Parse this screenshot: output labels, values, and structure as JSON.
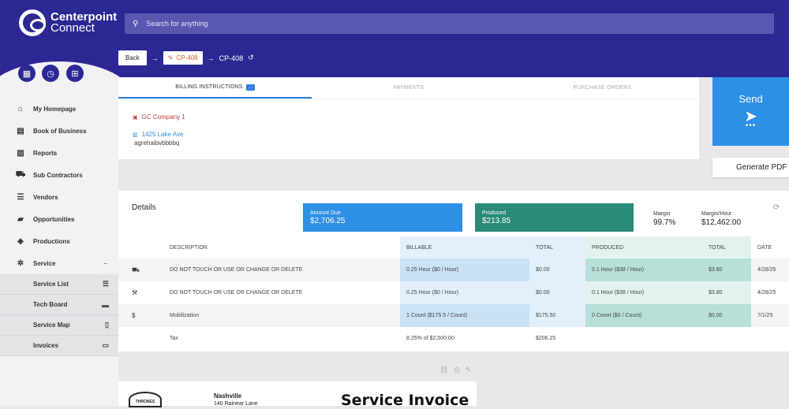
{
  "app": {
    "logo_line1": "Centerpoint",
    "logo_line2": "Connect",
    "brand_color": "#2b2894"
  },
  "search": {
    "placeholder": "Search for anything"
  },
  "breadcrumb": {
    "back_label": "Back",
    "chip_label": "CP-408",
    "current_label": "CP-408"
  },
  "sidebar": {
    "items": [
      {
        "label": "My Homepage",
        "icon": "home-icon"
      },
      {
        "label": "Book of Business",
        "icon": "contacts-book-icon"
      },
      {
        "label": "Reports",
        "icon": "bar-chart-icon"
      },
      {
        "label": "Sub Contractors",
        "icon": "truck-icon"
      },
      {
        "label": "Vendors",
        "icon": "list-box-icon"
      },
      {
        "label": "Opportunities",
        "icon": "folder-icon"
      },
      {
        "label": "Productions",
        "icon": "layers-icon"
      },
      {
        "label": "Service",
        "icon": "wrench-icon"
      }
    ],
    "subitems": [
      {
        "label": "Service List",
        "icon": "list-icon"
      },
      {
        "label": "Tech Board",
        "icon": "board-icon"
      },
      {
        "label": "Service Map",
        "icon": "map-icon"
      },
      {
        "label": "Invoices",
        "icon": "credit-card-icon"
      }
    ]
  },
  "billing": {
    "tabs": [
      "BILLING INSTRUCTIONS",
      "PAYMENTS",
      "PURCHASE ORDERS"
    ],
    "badge": "...",
    "company": "GC Company 1",
    "address": "1425 Lake Ave",
    "note": "agrehaibvbbbbq"
  },
  "actions": {
    "send_label": "Send",
    "send_more": "•••",
    "generate_pdf_label": "Generate PDF I"
  },
  "details": {
    "title": "Details",
    "amount_due_label": "Amount Due",
    "amount_due_value": "$2,706.25",
    "produced_label": "Produced",
    "produced_value": "$213.85",
    "margin_label": "Margin",
    "margin_value": "99.7%",
    "margin_hour_label": "Margin/Hour",
    "margin_hour_value": "$12,462.00",
    "amount_due_color": "#2e8fe6",
    "produced_color": "#2a8a78"
  },
  "table": {
    "headers": {
      "description": "DESCRIPTION",
      "billable": "BILLABLE",
      "total": "TOTAL",
      "produced": "PRODUCED",
      "total2": "TOTAL",
      "date": "DATE"
    },
    "rows": [
      {
        "icon": "truck-icon",
        "icon_glyph": "⛟",
        "description": "DO NOT TOUCH OR USE OR CHANGE OR DELETE",
        "billable": "0.25 Hour ($0 / Hour)",
        "total": "$0.00",
        "produced": "0.1 Hour ($38 / Hour)",
        "total2": "$3.80",
        "date": "4/28/25"
      },
      {
        "icon": "wrench-icon",
        "icon_glyph": "🔧",
        "description": "DO NOT TOUCH OR USE OR CHANGE OR DELETE",
        "billable": "0.25 Hour ($0 / Hour)",
        "total": "$0.00",
        "produced": "0.1 Hour ($38 / Hour)",
        "total2": "$3.80",
        "date": "4/28/25"
      },
      {
        "icon": "dollar-icon",
        "icon_glyph": "$",
        "description": "Mobilization",
        "billable": "1 Count ($175.5 / Count)",
        "total": "$175.50",
        "produced": "0 Count ($0 / Count)",
        "total2": "$0.00",
        "date": "7/1/25"
      }
    ],
    "tax": {
      "description": "Tax",
      "billable": "8.25% of $2,500.00",
      "total": "$206.25"
    }
  },
  "invoice": {
    "logo_text": "THRONES",
    "city": "Nashville",
    "street": "140 Rainear Lane",
    "title": "Service Invoice"
  }
}
